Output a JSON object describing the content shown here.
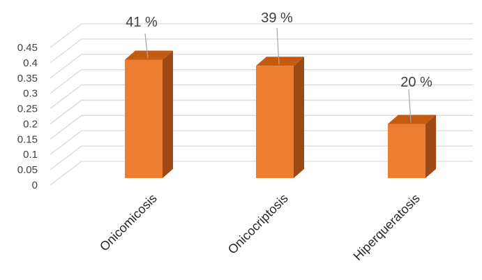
{
  "chart_data": {
    "type": "bar",
    "categories": [
      "Onicomicosis",
      "Onicocriptosis",
      "Hiperqueratosis"
    ],
    "values": [
      0.41,
      0.39,
      0.2
    ],
    "data_labels": [
      "41 %",
      "39 %",
      "20 %"
    ],
    "yticks": [
      "0",
      "0.05",
      "0.1",
      "0.15",
      "0.2",
      "0.25",
      "0.3",
      "0.35",
      "0.4",
      "0.45"
    ],
    "ylim": [
      0,
      0.45
    ],
    "grid": true,
    "three_d": true,
    "colors": {
      "front": "#ED7D31",
      "top": "#C55A11",
      "side": "#9E4A16",
      "grid": "#D9D9D9",
      "leader": "#A6A6A6"
    }
  }
}
